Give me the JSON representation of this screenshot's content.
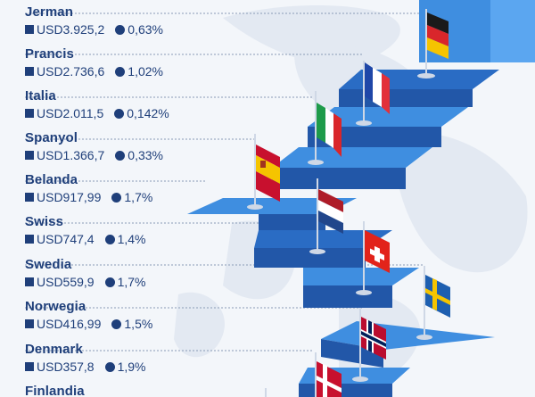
{
  "countries": [
    {
      "name": "Jerman",
      "gdp": "USD3.925,2",
      "growth": "0,63%"
    },
    {
      "name": "Prancis",
      "gdp": "USD2.736,6",
      "growth": "1,02%"
    },
    {
      "name": "Italia",
      "gdp": "USD2.011,5",
      "growth": "0,142%"
    },
    {
      "name": "Spanyol",
      "gdp": "USD1.366,7",
      "growth": "0,33%"
    },
    {
      "name": "Belanda",
      "gdp": "USD917,99",
      "growth": "1,7%"
    },
    {
      "name": "Swiss",
      "gdp": "USD747,4",
      "growth": "1,4%"
    },
    {
      "name": "Swedia",
      "gdp": "USD559,9",
      "growth": "1,7%"
    },
    {
      "name": "Norwegia",
      "gdp": "USD416,99",
      "growth": "1,5%"
    },
    {
      "name": "Denmark",
      "gdp": "USD357,8",
      "growth": "1,9%"
    },
    {
      "name": "Finlandia",
      "gdp": "",
      "growth": ""
    }
  ],
  "colors": {
    "text": "#1f3f7a",
    "stair_light": "#3f8ee0",
    "stair_dark": "#2257a8",
    "stair_top": "#2a6cc4",
    "leader": "#8a9bb5",
    "background": "#f3f6fa",
    "map_land": "#e3e9f2"
  },
  "icons": [
    "flag-germany-icon",
    "flag-france-icon",
    "flag-italy-icon",
    "flag-spain-icon",
    "flag-netherlands-icon",
    "flag-switzerland-icon",
    "flag-sweden-icon",
    "flag-norway-icon",
    "flag-denmark-icon",
    "square-bullet-icon",
    "circle-bullet-icon"
  ]
}
